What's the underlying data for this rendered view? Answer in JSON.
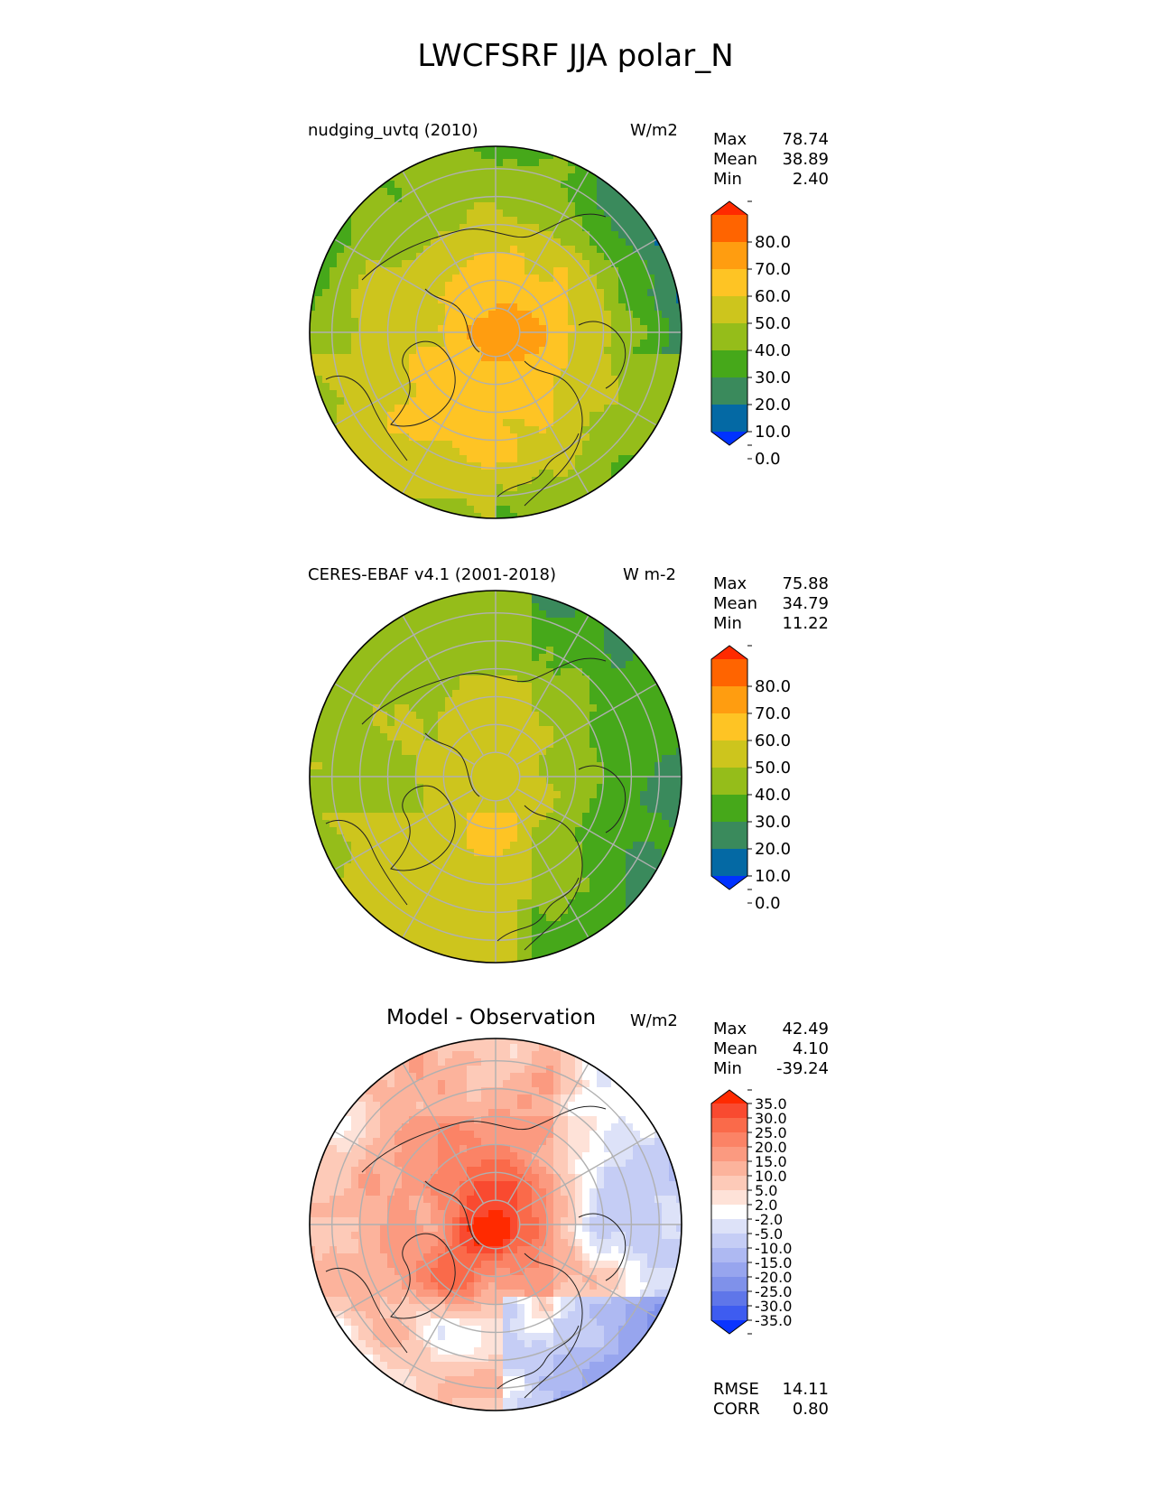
{
  "title": "LWCFSRF JJA polar_N",
  "panels": [
    {
      "id": "test",
      "label": "nudging_uvtq (2010)",
      "units": "W/m2",
      "stats": [
        {
          "name": "Max",
          "value": "78.74"
        },
        {
          "name": "Mean",
          "value": "38.89"
        },
        {
          "name": "Min",
          "value": "2.40"
        }
      ],
      "colorbar": {
        "ticks": [
          "80.0",
          "70.0",
          "60.0",
          "50.0",
          "40.0",
          "30.0",
          "20.0",
          "10.0",
          "0.0"
        ],
        "colors": [
          "#ff2a00",
          "#ff6400",
          "#ff9d10",
          "#fec424",
          "#cdc51d",
          "#95bd1a",
          "#46a81a",
          "#3a8a5c",
          "#0469a4",
          "#0032ff"
        ]
      }
    },
    {
      "id": "reference",
      "label": "CERES-EBAF v4.1 (2001-2018)",
      "units": "W m-2",
      "stats": [
        {
          "name": "Max",
          "value": "75.88"
        },
        {
          "name": "Mean",
          "value": "34.79"
        },
        {
          "name": "Min",
          "value": "11.22"
        }
      ],
      "colorbar": {
        "ticks": [
          "80.0",
          "70.0",
          "60.0",
          "50.0",
          "40.0",
          "30.0",
          "20.0",
          "10.0",
          "0.0"
        ],
        "colors": [
          "#ff2a00",
          "#ff6400",
          "#ff9d10",
          "#fec424",
          "#cdc51d",
          "#95bd1a",
          "#46a81a",
          "#3a8a5c",
          "#0469a4",
          "#0032ff"
        ]
      }
    },
    {
      "id": "difference",
      "label": "Model - Observation",
      "units": "W/m2",
      "stats": [
        {
          "name": "Max",
          "value": "42.49"
        },
        {
          "name": "Mean",
          "value": "4.10"
        },
        {
          "name": "Min",
          "value": "-39.24"
        }
      ],
      "colorbar": {
        "ticks": [
          "35.0",
          "30.0",
          "25.0",
          "20.0",
          "15.0",
          "10.0",
          "5.0",
          "2.0",
          "-2.0",
          "-5.0",
          "-10.0",
          "-15.0",
          "-20.0",
          "-25.0",
          "-30.0",
          "-35.0"
        ],
        "colors": [
          "#ff2a00",
          "#f94a30",
          "#fa6a4a",
          "#fb8366",
          "#fb9a80",
          "#fcb39c",
          "#fdcab8",
          "#fee2d8",
          "#ffffff",
          "#dde2f8",
          "#c5cdf5",
          "#aeb9f2",
          "#97a5ee",
          "#7f91ea",
          "#5f76e9",
          "#3e5cf0",
          "#0a34ff"
        ]
      },
      "metrics": [
        {
          "name": "RMSE",
          "value": "14.11"
        },
        {
          "name": "CORR",
          "value": "0.80"
        }
      ]
    }
  ]
}
